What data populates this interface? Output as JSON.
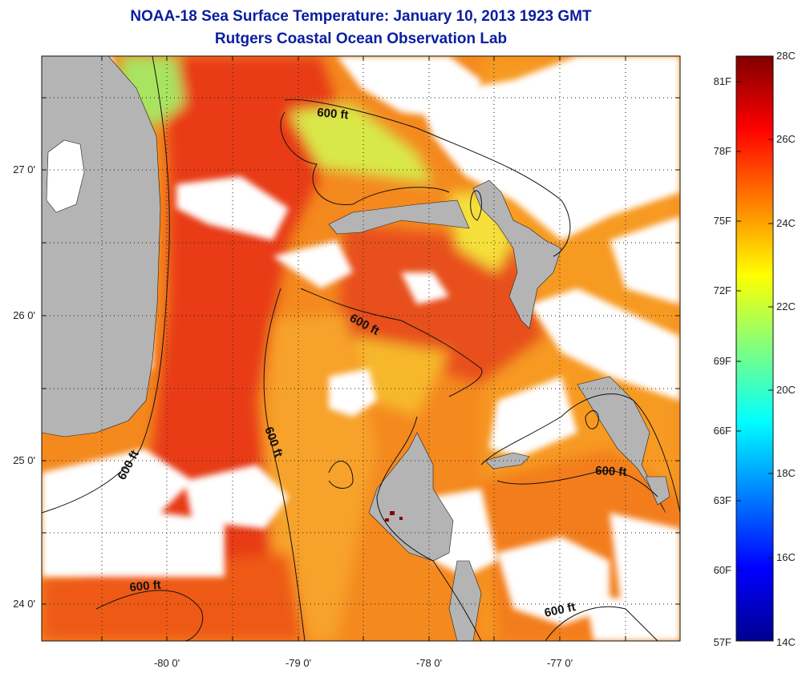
{
  "title": "NOAA-18 Sea Surface Temperature:  January 10, 2013 1923 GMT",
  "subtitle": "Rutgers Coastal Ocean Observation Lab",
  "map": {
    "lon_labels": [
      "-80 0'",
      "-79 0'",
      "-78 0'",
      "-77 0'"
    ],
    "lat_labels": [
      "27 0'",
      "26 0'",
      "25 0'",
      "24 0'"
    ],
    "contour_label": "600 ft",
    "colors": {
      "land": "#b4b4b4",
      "cloud": "#ffffff",
      "warm": "#f26420",
      "hot": "#e03a14",
      "cool": "#b8e84a"
    }
  },
  "colorbar": {
    "c_labels": [
      "28C",
      "26C",
      "24C",
      "22C",
      "20C",
      "18C",
      "16C",
      "14C"
    ],
    "f_labels": [
      "81F",
      "78F",
      "75F",
      "72F",
      "69F",
      "66F",
      "63F",
      "60F",
      "57F"
    ],
    "c_min": 14,
    "c_max": 28
  }
}
